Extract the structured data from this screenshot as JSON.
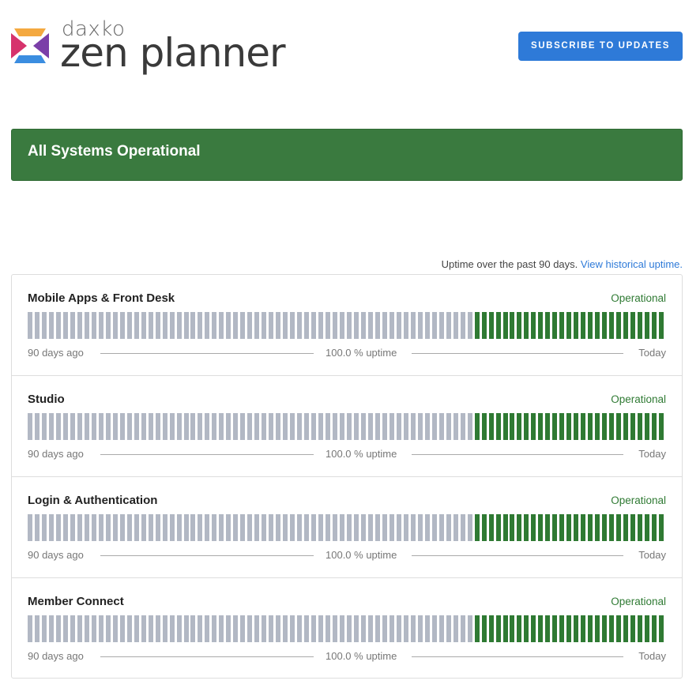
{
  "brand": {
    "top_text": "daxko",
    "main_text": "zen planner",
    "colors": {
      "top": "#f4a940",
      "left": "#d6336c",
      "right": "#7b3fa8",
      "bottom": "#3b8de0"
    }
  },
  "header": {
    "subscribe_label": "SUBSCRIBE TO UPDATES"
  },
  "status": {
    "message": "All Systems Operational",
    "color": "#3a7a3f"
  },
  "uptime_note": {
    "text": "Uptime over the past 90 days.",
    "link": "View historical uptime."
  },
  "components": [
    {
      "name": "Mobile Apps & Front Desk",
      "status": "Operational",
      "start_label": "90 days ago",
      "uptime": "100.0 % uptime",
      "end_label": "Today"
    },
    {
      "name": "Studio",
      "status": "Operational",
      "start_label": "90 days ago",
      "uptime": "100.0 % uptime",
      "end_label": "Today"
    },
    {
      "name": "Login & Authentication",
      "status": "Operational",
      "start_label": "90 days ago",
      "uptime": "100.0 % uptime",
      "end_label": "Today"
    },
    {
      "name": "Member Connect",
      "status": "Operational",
      "start_label": "90 days ago",
      "uptime": "100.0 % uptime",
      "end_label": "Today"
    }
  ],
  "bar_counts": {
    "no_data": 63,
    "operational": 27
  },
  "bar_colors": {
    "no_data": "#b2b8c4",
    "operational": "#2f7a33"
  }
}
